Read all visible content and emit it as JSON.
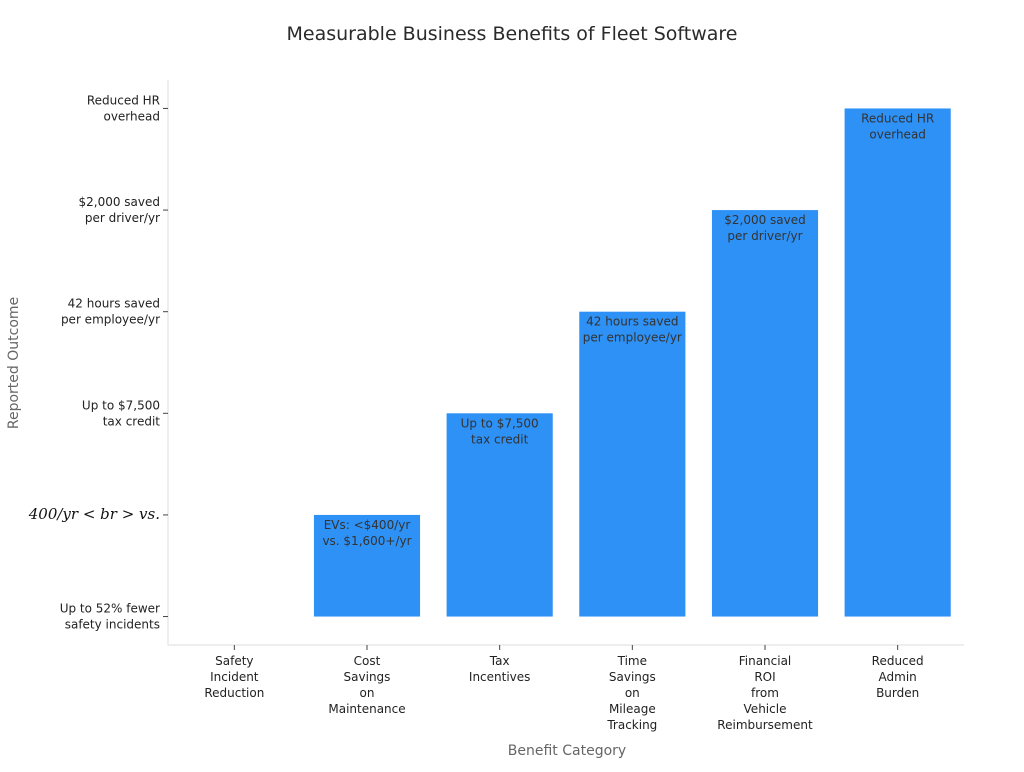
{
  "chart_data": {
    "type": "bar",
    "title": "Measurable Business Benefits of Fleet Software",
    "xlabel": "Benefit Category",
    "ylabel": "Reported Outcome",
    "categories": [
      "Safety Incident Reduction",
      "Cost Savings on Maintenance",
      "Tax Incentives",
      "Time Savings on Mileage Tracking",
      "Financial ROI from Vehicle Reimbursement",
      "Reduced Admin Burden"
    ],
    "category_label_lines": [
      [
        "Safety",
        "Incident",
        "Reduction"
      ],
      [
        "Cost",
        "Savings",
        "on",
        "Maintenance"
      ],
      [
        "Tax",
        "Incentives"
      ],
      [
        "Time",
        "Savings",
        "on",
        "Mileage",
        "Tracking"
      ],
      [
        "Financial",
        "ROI",
        "from",
        "Vehicle",
        "Reimbursement"
      ],
      [
        "Reduced",
        "Admin",
        "Burden"
      ]
    ],
    "values": [
      0,
      1,
      2,
      3,
      4,
      5
    ],
    "ylim": [
      -0.28,
      5.28
    ],
    "yticks": [
      {
        "value": 0,
        "lines": [
          "Up to 52% fewer",
          "safety incidents"
        ],
        "math": false
      },
      {
        "value": 1,
        "lines": [
          "400/yr < br > vs."
        ],
        "math": true
      },
      {
        "value": 2,
        "lines": [
          "Up to $7,500",
          "tax credit"
        ],
        "math": false
      },
      {
        "value": 3,
        "lines": [
          "42 hours saved",
          "per employee/yr"
        ],
        "math": false
      },
      {
        "value": 4,
        "lines": [
          "$2,000 saved",
          "per driver/yr"
        ],
        "math": false
      },
      {
        "value": 5,
        "lines": [
          "Reduced HR",
          "overhead"
        ],
        "math": false
      }
    ],
    "bar_labels": [
      [],
      [
        "EVs: <$400/yr",
        "vs. $1,600+/yr"
      ],
      [
        "Up to $7,500",
        "tax credit"
      ],
      [
        "42 hours saved",
        "per employee/yr"
      ],
      [
        "$2,000 saved",
        "per driver/yr"
      ],
      [
        "Reduced HR",
        "overhead"
      ]
    ],
    "bar_color": "#2e91f5",
    "grid": false,
    "legend": "none"
  }
}
